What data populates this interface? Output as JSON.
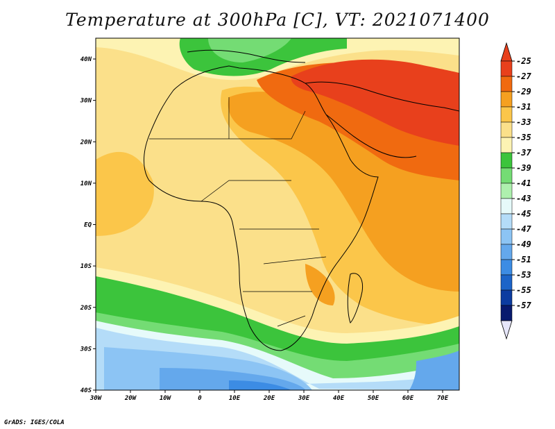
{
  "title": "Temperature at 300hPa [C], VT: 2021071400",
  "credit": "GrADS: IGES/COLA",
  "lat_labels": [
    "40N",
    "30N",
    "20N",
    "10N",
    "EQ",
    "10S",
    "20S",
    "30S",
    "40S"
  ],
  "lon_labels": [
    "30W",
    "20W",
    "10W",
    "0",
    "10E",
    "20E",
    "30E",
    "40E",
    "50E",
    "60E",
    "70E"
  ],
  "colorbar": {
    "labels": [
      "-25",
      "-27",
      "-29",
      "-31",
      "-33",
      "-35",
      "-37",
      "-39",
      "-41",
      "-43",
      "-45",
      "-47",
      "-49",
      "-51",
      "-53",
      "-55",
      "-57"
    ],
    "colors": [
      "#e8401c",
      "#f06a10",
      "#f5a020",
      "#fbc64a",
      "#fbe08a",
      "#fdf3b3",
      "#3cc43c",
      "#74dc74",
      "#aef0ae",
      "#e6fafa",
      "#b4dcf8",
      "#8cc4f4",
      "#64a8ec",
      "#3c8ce4",
      "#1c64c8",
      "#0c3ca0",
      "#081a6e"
    ],
    "top_color": "#e8401c",
    "bottom_color": "#e6e6fa"
  }
}
